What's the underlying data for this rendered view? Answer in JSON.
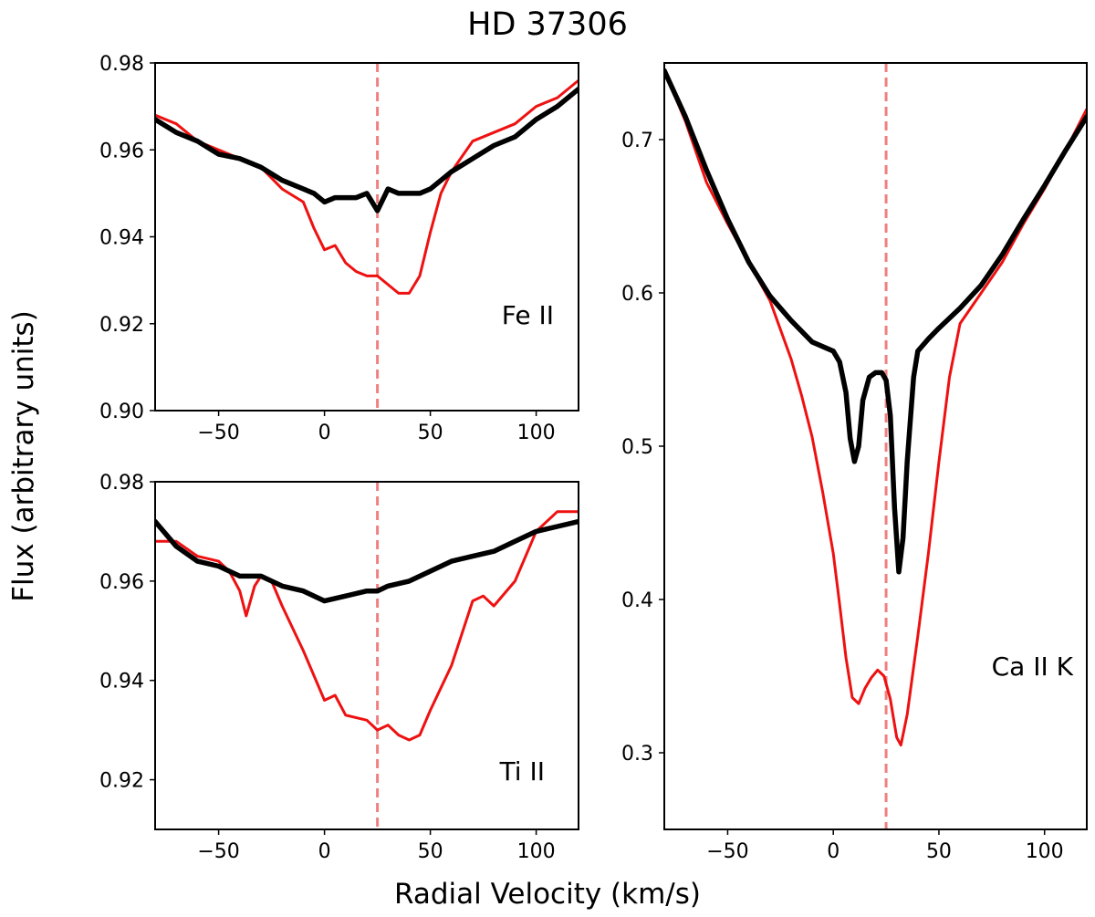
{
  "title": "HD 37306",
  "xlabel": "Radial Velocity (km/s)",
  "ylabel": "Flux (arbitrary units)",
  "colors": {
    "observed": "#000000",
    "comparison": "#ee1111",
    "reference_line": "#f08080"
  },
  "chart_data": [
    {
      "type": "line",
      "panel": "Fe II",
      "label": "Fe II",
      "xlim": [
        -80,
        120
      ],
      "ylim": [
        0.9,
        0.98
      ],
      "xticks": [
        -50,
        0,
        50,
        100
      ],
      "yticks": [
        0.9,
        0.92,
        0.94,
        0.96,
        0.98
      ],
      "ytick_labels": [
        "0.90",
        "0.92",
        "0.94",
        "0.96",
        "0.98"
      ],
      "xtick_labels": [
        "−50",
        "0",
        "50",
        "100"
      ],
      "vline": 25,
      "series": [
        {
          "name": "black",
          "color": "#000000",
          "width": 5.5,
          "x": [
            -80,
            -70,
            -60,
            -50,
            -40,
            -30,
            -20,
            -10,
            -5,
            0,
            5,
            10,
            15,
            20,
            25,
            30,
            35,
            40,
            45,
            50,
            60,
            70,
            80,
            90,
            100,
            110,
            120
          ],
          "y": [
            0.967,
            0.964,
            0.962,
            0.959,
            0.958,
            0.956,
            0.953,
            0.951,
            0.95,
            0.948,
            0.949,
            0.949,
            0.949,
            0.95,
            0.946,
            0.951,
            0.95,
            0.95,
            0.95,
            0.951,
            0.955,
            0.958,
            0.961,
            0.963,
            0.967,
            0.97,
            0.974
          ]
        },
        {
          "name": "red",
          "color": "#ee1111",
          "width": 3,
          "x": [
            -80,
            -70,
            -60,
            -50,
            -40,
            -30,
            -20,
            -10,
            -5,
            0,
            5,
            10,
            15,
            20,
            25,
            30,
            35,
            40,
            45,
            50,
            55,
            60,
            70,
            80,
            90,
            100,
            110,
            120
          ],
          "y": [
            0.968,
            0.966,
            0.962,
            0.96,
            0.958,
            0.956,
            0.951,
            0.948,
            0.942,
            0.937,
            0.938,
            0.934,
            0.932,
            0.931,
            0.931,
            0.929,
            0.927,
            0.927,
            0.931,
            0.941,
            0.95,
            0.955,
            0.962,
            0.964,
            0.966,
            0.97,
            0.972,
            0.976
          ]
        }
      ]
    },
    {
      "type": "line",
      "panel": "Ti II",
      "label": "Ti II",
      "xlim": [
        -80,
        120
      ],
      "ylim": [
        0.91,
        0.98
      ],
      "xticks": [
        -50,
        0,
        50,
        100
      ],
      "yticks": [
        0.92,
        0.94,
        0.96,
        0.98
      ],
      "ytick_labels": [
        "0.92",
        "0.94",
        "0.96",
        "0.98"
      ],
      "xtick_labels": [
        "−50",
        "0",
        "50",
        "100"
      ],
      "vline": 25,
      "series": [
        {
          "name": "black",
          "color": "#000000",
          "width": 5.5,
          "x": [
            -80,
            -70,
            -60,
            -50,
            -40,
            -30,
            -20,
            -10,
            0,
            10,
            20,
            25,
            30,
            40,
            50,
            60,
            70,
            80,
            90,
            100,
            110,
            120
          ],
          "y": [
            0.972,
            0.967,
            0.964,
            0.963,
            0.961,
            0.961,
            0.959,
            0.958,
            0.956,
            0.957,
            0.958,
            0.958,
            0.959,
            0.96,
            0.962,
            0.964,
            0.965,
            0.966,
            0.968,
            0.97,
            0.971,
            0.972
          ]
        },
        {
          "name": "red",
          "color": "#ee1111",
          "width": 3,
          "x": [
            -80,
            -70,
            -60,
            -50,
            -45,
            -40,
            -37,
            -33,
            -30,
            -25,
            -20,
            -10,
            0,
            5,
            10,
            20,
            25,
            30,
            35,
            40,
            45,
            50,
            60,
            70,
            75,
            80,
            90,
            100,
            110,
            120
          ],
          "y": [
            0.968,
            0.968,
            0.965,
            0.964,
            0.962,
            0.958,
            0.953,
            0.959,
            0.961,
            0.96,
            0.955,
            0.946,
            0.936,
            0.937,
            0.933,
            0.932,
            0.93,
            0.931,
            0.929,
            0.928,
            0.929,
            0.934,
            0.943,
            0.956,
            0.957,
            0.955,
            0.96,
            0.97,
            0.974,
            0.974
          ]
        }
      ]
    },
    {
      "type": "line",
      "panel": "Ca II K",
      "label": "Ca II K",
      "xlim": [
        -80,
        120
      ],
      "ylim": [
        0.25,
        0.75
      ],
      "xticks": [
        -50,
        0,
        50,
        100
      ],
      "yticks": [
        0.3,
        0.4,
        0.5,
        0.6,
        0.7
      ],
      "ytick_labels": [
        "0.3",
        "0.4",
        "0.5",
        "0.6",
        "0.7"
      ],
      "xtick_labels": [
        "−50",
        "0",
        "50",
        "100"
      ],
      "vline": 25,
      "series": [
        {
          "name": "black",
          "color": "#000000",
          "width": 5.5,
          "x": [
            -80,
            -70,
            -60,
            -50,
            -40,
            -30,
            -20,
            -10,
            -5,
            0,
            3,
            6,
            8,
            10,
            12,
            14,
            17,
            20,
            23,
            25,
            27,
            29,
            31,
            33,
            35,
            38,
            40,
            45,
            50,
            60,
            70,
            80,
            90,
            100,
            110,
            120
          ],
          "y": [
            0.745,
            0.715,
            0.68,
            0.648,
            0.62,
            0.598,
            0.582,
            0.568,
            0.565,
            0.562,
            0.555,
            0.535,
            0.505,
            0.49,
            0.5,
            0.53,
            0.545,
            0.548,
            0.548,
            0.543,
            0.52,
            0.46,
            0.418,
            0.44,
            0.49,
            0.545,
            0.562,
            0.57,
            0.577,
            0.59,
            0.605,
            0.625,
            0.648,
            0.67,
            0.693,
            0.715
          ]
        },
        {
          "name": "red",
          "color": "#ee1111",
          "width": 3,
          "x": [
            -80,
            -70,
            -60,
            -50,
            -40,
            -30,
            -20,
            -15,
            -10,
            -5,
            0,
            3,
            6,
            9,
            12,
            15,
            18,
            21,
            24,
            27,
            30,
            32,
            35,
            40,
            45,
            50,
            55,
            60,
            70,
            80,
            90,
            100,
            110,
            120
          ],
          "y": [
            0.745,
            0.712,
            0.672,
            0.645,
            0.62,
            0.595,
            0.557,
            0.533,
            0.506,
            0.47,
            0.43,
            0.397,
            0.362,
            0.336,
            0.332,
            0.342,
            0.349,
            0.354,
            0.35,
            0.335,
            0.31,
            0.305,
            0.325,
            0.376,
            0.43,
            0.49,
            0.545,
            0.58,
            0.6,
            0.62,
            0.645,
            0.668,
            0.693,
            0.72
          ]
        }
      ]
    }
  ]
}
